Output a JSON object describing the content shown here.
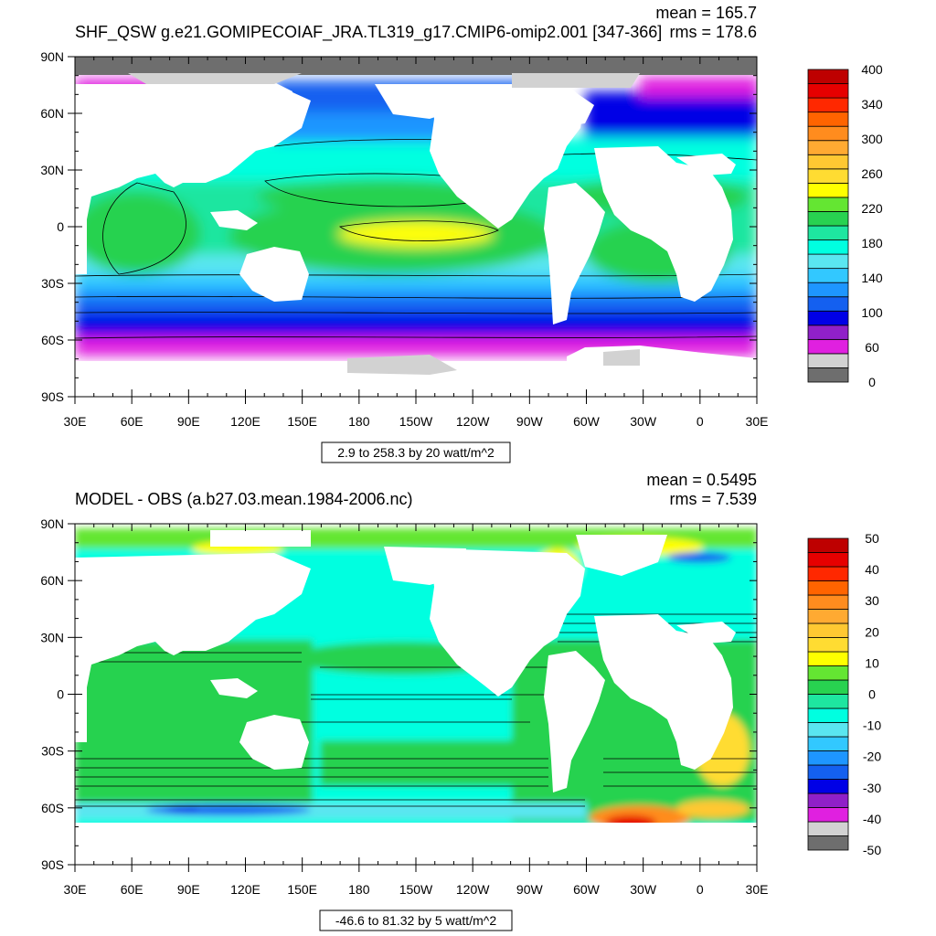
{
  "panels": [
    {
      "title": "SHF_QSW g.e21.GOMIPECOIAF_JRA.TL319_g17.CMIP6-omip2.001 [347-366]",
      "mean_text": "mean = 165.7",
      "rms_text": "rms = 178.6",
      "range_text": "2.9 to 258.3 by 20 watt/m^2",
      "chart_data": {
        "type": "heatmap",
        "title": "SHF_QSW g.e21.GOMIPECOIAF_JRA.TL319_g17.CMIP6-omip2.001 [347-366]",
        "xlabel": "",
        "ylabel": "",
        "x_ticks": [
          "30E",
          "60E",
          "90E",
          "120E",
          "150E",
          "180",
          "150W",
          "120W",
          "90W",
          "60W",
          "30W",
          "0",
          "30E"
        ],
        "y_ticks": [
          "90N",
          "60N",
          "30N",
          "0",
          "30S",
          "60S",
          "90S"
        ],
        "xlim": [
          30,
          390
        ],
        "ylim": [
          -90,
          90
        ],
        "mean": 165.7,
        "rms": 178.6,
        "field_min": 2.9,
        "field_max": 258.3,
        "contour_interval": 20,
        "units": "watt/m^2",
        "colorbar_labels": [
          "400",
          "340",
          "300",
          "260",
          "220",
          "180",
          "140",
          "100",
          "60",
          "0"
        ],
        "colorbar_colors": [
          "#6e6e6e",
          "#d2d2d2",
          "#e020e0",
          "#9020c8",
          "#0000e6",
          "#1460f0",
          "#1e96ff",
          "#32c8ff",
          "#5ae6f0",
          "#00ffe0",
          "#1ee6a0",
          "#28d250",
          "#64e632",
          "#ffff00",
          "#ffdc32",
          "#ffc832",
          "#ffaa32",
          "#ff8c1e",
          "#ff6400",
          "#ff2800",
          "#e60000",
          "#be0000"
        ],
        "legend": "right"
      }
    },
    {
      "title": "MODEL - OBS (a.b27.03.mean.1984-2006.nc)",
      "mean_text": "mean = 0.5495",
      "rms_text": "rms = 7.539",
      "range_text": "-46.6 to 81.32 by 5 watt/m^2",
      "chart_data": {
        "type": "heatmap",
        "title": "MODEL - OBS (a.b27.03.mean.1984-2006.nc)",
        "xlabel": "",
        "ylabel": "",
        "x_ticks": [
          "30E",
          "60E",
          "90E",
          "120E",
          "150E",
          "180",
          "150W",
          "120W",
          "90W",
          "60W",
          "30W",
          "0",
          "30E"
        ],
        "y_ticks": [
          "90N",
          "60N",
          "30N",
          "0",
          "30S",
          "60S",
          "90S"
        ],
        "xlim": [
          30,
          390
        ],
        "ylim": [
          -90,
          90
        ],
        "mean": 0.5495,
        "rms": 7.539,
        "field_min": -46.6,
        "field_max": 81.32,
        "contour_interval": 5,
        "units": "watt/m^2",
        "colorbar_labels": [
          "50",
          "40",
          "30",
          "20",
          "10",
          "0",
          "-10",
          "-20",
          "-30",
          "-40",
          "-50"
        ],
        "colorbar_colors": [
          "#6e6e6e",
          "#d2d2d2",
          "#e020e0",
          "#9020c8",
          "#0000e6",
          "#1460f0",
          "#1e96ff",
          "#32c8ff",
          "#5ae6f0",
          "#00ffe0",
          "#1ee6a0",
          "#28d250",
          "#64e632",
          "#ffff00",
          "#ffdc32",
          "#ffc832",
          "#ffaa32",
          "#ff8c1e",
          "#ff6400",
          "#ff2800",
          "#e60000",
          "#be0000"
        ],
        "legend": "right"
      }
    }
  ]
}
